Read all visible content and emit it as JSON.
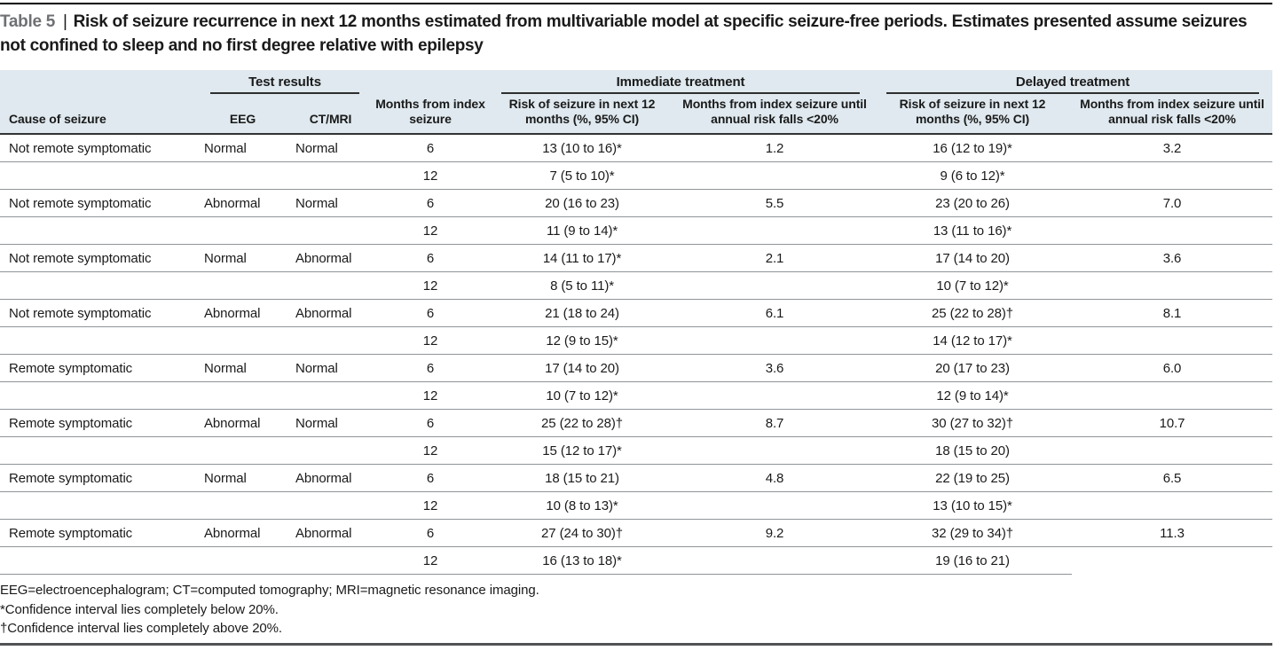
{
  "title": {
    "label": "Table 5",
    "divider": "|",
    "text": "Risk of seizure recurrence in next 12 months estimated from multivariable model at specific seizure-free periods. Estimates presented assume seizures not confined to sleep and no first degree relative with epilepsy"
  },
  "table": {
    "group_headers": {
      "test_results": "Test results",
      "immediate": "Immediate treatment",
      "delayed": "Delayed treatment"
    },
    "columns": [
      "Cause of seizure",
      "EEG",
      "CT/MRI",
      "Months from index seizure",
      "Risk of seizure in next 12 months (%, 95% CI)",
      "Months from index seizure until annual risk falls <20%",
      "Risk of seizure in next 12 months (%, 95% CI)",
      "Months from index seizure until annual risk falls <20%"
    ],
    "rows": [
      [
        "Not remote symptomatic",
        "Normal",
        "Normal",
        "6",
        "13 (10 to 16)*",
        "1.2",
        "16 (12 to 19)*",
        "3.2"
      ],
      [
        "",
        "",
        "",
        "12",
        "7 (5 to 10)*",
        "",
        "9 (6 to 12)*",
        ""
      ],
      [
        "Not remote symptomatic",
        "Abnormal",
        "Normal",
        "6",
        "20 (16 to 23)",
        "5.5",
        "23 (20 to 26)",
        "7.0"
      ],
      [
        "",
        "",
        "",
        "12",
        "11 (9 to 14)*",
        "",
        "13 (11 to 16)*",
        ""
      ],
      [
        "Not remote symptomatic",
        "Normal",
        "Abnormal",
        "6",
        "14 (11 to 17)*",
        "2.1",
        "17 (14 to 20)",
        "3.6"
      ],
      [
        "",
        "",
        "",
        "12",
        "8 (5 to 11)*",
        "",
        "10 (7 to 12)*",
        ""
      ],
      [
        "Not remote symptomatic",
        "Abnormal",
        "Abnormal",
        "6",
        "21 (18 to 24)",
        "6.1",
        "25 (22 to 28)†",
        "8.1"
      ],
      [
        "",
        "",
        "",
        "12",
        "12 (9 to 15)*",
        "",
        "14 (12 to 17)*",
        ""
      ],
      [
        "Remote symptomatic",
        "Normal",
        "Normal",
        "6",
        "17 (14 to 20)",
        "3.6",
        "20 (17 to 23)",
        "6.0"
      ],
      [
        "",
        "",
        "",
        "12",
        "10 (7 to 12)*",
        "",
        "12 (9 to 14)*",
        ""
      ],
      [
        "Remote symptomatic",
        "Abnormal",
        "Normal",
        "6",
        "25 (22 to 28)†",
        "8.7",
        "30 (27 to 32)†",
        "10.7"
      ],
      [
        "",
        "",
        "",
        "12",
        "15 (12 to 17)*",
        "",
        "18 (15 to 20)",
        ""
      ],
      [
        "Remote symptomatic",
        "Normal",
        "Abnormal",
        "6",
        "18 (15 to 21)",
        "4.8",
        "22 (19 to 25)",
        "6.5"
      ],
      [
        "",
        "",
        "",
        "12",
        "10 (8 to 13)*",
        "",
        "13 (10 to 15)*",
        ""
      ],
      [
        "Remote symptomatic",
        "Abnormal",
        "Abnormal",
        "6",
        "27 (24 to 30)†",
        "9.2",
        "32 (29 to 34)†",
        "11.3"
      ],
      [
        "",
        "",
        "",
        "12",
        "16 (13 to 18)*",
        "",
        "19 (16 to 21)",
        ""
      ]
    ]
  },
  "footnotes": [
    "EEG=electroencephalogram; CT=computed tomography; MRI=magnetic resonance imaging.",
    "*Confidence interval lies completely below 20%.",
    "†Confidence interval lies completely above 20%."
  ],
  "colors": {
    "header_background": "#dfe9ef",
    "group_underline": "#2e2e2e",
    "row_separator": "#8f9498",
    "table_label_gray": "#6e7073",
    "top_rule": "#000000",
    "bottom_rule": "#515254"
  }
}
